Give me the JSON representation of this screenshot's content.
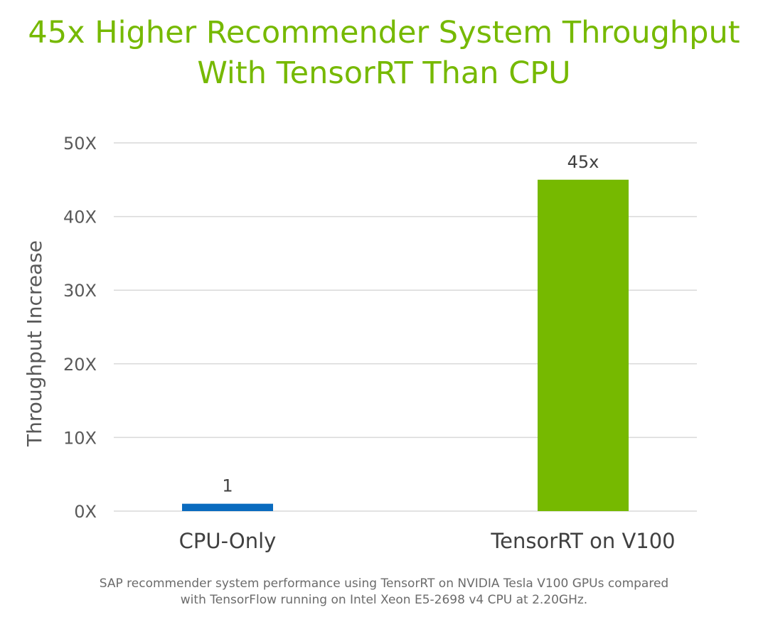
{
  "title_lines": [
    "45x Higher Recommender System Throughput",
    "With TensorRT Than CPU"
  ],
  "footnote_lines": [
    "SAP recommender system performance using TensorRT on NVIDIA Tesla V100 GPUs compared",
    "with TensorFlow running on Intel Xeon E5-2698 v4 CPU at 2.20GHz."
  ],
  "colors": {
    "title": "#76b900",
    "cpu_bar": "#0a6bbf",
    "gpu_bar": "#76b900",
    "grid": "#d9d9d9",
    "text": "#404040"
  },
  "chart_data": {
    "type": "bar",
    "title": "45x Higher Recommender System Throughput With TensorRT Than CPU",
    "xlabel": "",
    "ylabel": "Throughput Increase",
    "ylim": [
      0,
      50
    ],
    "yticks": [
      0,
      10,
      20,
      30,
      40,
      50
    ],
    "ytick_labels": [
      "0X",
      "10X",
      "20X",
      "30X",
      "40X",
      "50X"
    ],
    "grid": true,
    "categories": [
      "CPU-Only",
      "TensorRT on V100"
    ],
    "values": [
      1,
      45
    ],
    "data_labels": [
      "1",
      "45x"
    ],
    "bar_colors": [
      "#0a6bbf",
      "#76b900"
    ]
  }
}
